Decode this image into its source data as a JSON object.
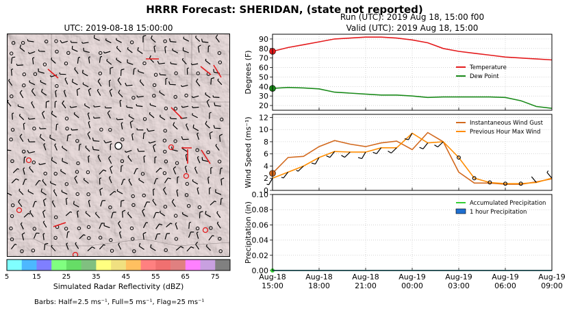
{
  "figure": {
    "title": "HRRR Forecast: SHERIDAN, (state not reported)",
    "map_title": "UTC: 2019-08-18 15:00:00",
    "run_line": "Run (UTC): 2019 Aug 18, 15:00 f00",
    "valid_line": "Valid (UTC): 2019 Aug 18, 15:00",
    "colorbar_label": "Simulated Radar Reflectivity (dBZ)",
    "barb_note": "Barbs: Half=2.5 ms⁻¹, Full=5 ms⁻¹, Flag=25 ms⁻¹"
  },
  "colors": {
    "temperature": "#e41a1c",
    "dew_point": "#1a8a1a",
    "gust": "#d2691e",
    "max_wind": "#ff8c00",
    "accum_precip": "#32cd32",
    "hourly_precip": "#1f6fd0"
  },
  "chart_data": [
    {
      "type": "colorbar",
      "title": "",
      "label": "Simulated Radar Reflectivity (dBZ)",
      "range": [
        5,
        80
      ],
      "bins": [
        5,
        10,
        15,
        20,
        25,
        30,
        35,
        40,
        45,
        50,
        55,
        60,
        65,
        70,
        75,
        80
      ],
      "tick_labels": [
        "5",
        "15",
        "25",
        "35",
        "45",
        "55",
        "65",
        "75"
      ],
      "colors": [
        "#80ffff",
        "#4db8ff",
        "#7f7fff",
        "#80ff80",
        "#66dd66",
        "#80c080",
        "#ffff80",
        "#f0e080",
        "#ffc060",
        "#ff8080",
        "#f07070",
        "#e08080",
        "#ff80ff",
        "#c8a0e0",
        "#808080"
      ]
    },
    {
      "type": "line",
      "panel": "temperature",
      "ylabel": "Degrees (F)",
      "ylim": [
        15,
        95
      ],
      "yticks": [
        20,
        30,
        40,
        50,
        60,
        70,
        80,
        90
      ],
      "grid": true,
      "legend_position": "right",
      "x_hours": [
        0,
        1,
        2,
        3,
        4,
        5,
        6,
        7,
        8,
        9,
        10,
        11,
        12,
        13,
        14,
        15,
        16,
        17,
        18
      ],
      "series": [
        {
          "name": "Temperature",
          "values": [
            77,
            81,
            84,
            87,
            90,
            91,
            92,
            92,
            91,
            89,
            86,
            80,
            77,
            75,
            73,
            71,
            70,
            69,
            68
          ]
        },
        {
          "name": "Dew Point",
          "values": [
            38,
            39,
            38.5,
            37.5,
            34,
            33,
            32,
            31,
            31,
            30,
            28.5,
            29,
            29,
            29,
            29,
            28.5,
            25,
            19,
            17
          ]
        }
      ]
    },
    {
      "type": "line",
      "panel": "wind",
      "ylabel": "Wind Speed (ms⁻¹)",
      "ylim": [
        0,
        12.5
      ],
      "yticks": [
        0,
        2,
        4,
        6,
        8,
        10,
        12
      ],
      "grid": true,
      "legend_position": "top-right",
      "x_hours": [
        0,
        1,
        2,
        3,
        4,
        5,
        6,
        7,
        8,
        9,
        10,
        11,
        12,
        13,
        14,
        15,
        16,
        17,
        18
      ],
      "series": [
        {
          "name": "Instantaneous Wind Gust",
          "values": [
            2.8,
            5.4,
            5.6,
            7.2,
            8.2,
            7.6,
            7.2,
            7.8,
            8.1,
            6.7,
            9.5,
            8.0,
            3.0,
            1.2,
            1.2,
            1.0,
            1.0,
            1.4,
            1.9
          ]
        },
        {
          "name": "Previous Hour Max Wind",
          "values": [
            2.0,
            3.0,
            4.0,
            5.4,
            6.4,
            6.3,
            6.3,
            7.0,
            7.0,
            9.4,
            7.8,
            8.0,
            5.4,
            2.0,
            1.3,
            1.1,
            1.1,
            1.3,
            2.0
          ]
        }
      ],
      "barb_speeds": [
        2,
        2.5,
        3,
        4.8,
        5.3,
        5.5,
        5.8,
        6.2,
        6.5,
        6.6,
        6.5,
        6.8,
        1.2,
        1.0,
        1.2,
        1.0,
        1.2,
        1.5,
        2.0
      ]
    },
    {
      "type": "area",
      "panel": "precipitation",
      "ylabel": "Precipitation (in)",
      "ylim": [
        0,
        0.1
      ],
      "yticks": [
        0.0,
        0.02,
        0.04,
        0.06,
        0.08,
        0.1
      ],
      "ytick_labels": [
        "0.00",
        "0.02",
        "0.04",
        "0.06",
        "0.08",
        "0.10"
      ],
      "grid": true,
      "legend_position": "top-right",
      "x_hours": [
        0,
        1,
        2,
        3,
        4,
        5,
        6,
        7,
        8,
        9,
        10,
        11,
        12,
        13,
        14,
        15,
        16,
        17,
        18
      ],
      "series": [
        {
          "name": "Accumulated Precipitation",
          "values": [
            0,
            0,
            0,
            0,
            0,
            0,
            0,
            0,
            0,
            0,
            0,
            0,
            0,
            0,
            0,
            0,
            0,
            0,
            0
          ]
        },
        {
          "name": "1 hour Precipitation",
          "values": [
            0,
            0,
            0,
            0,
            0,
            0,
            0,
            0,
            0,
            0,
            0,
            0,
            0,
            0,
            0,
            0,
            0,
            0,
            0
          ]
        }
      ],
      "xticks": [
        "Aug-18\n15:00",
        "Aug-18\n18:00",
        "Aug-18\n21:00",
        "Aug-19\n00:00",
        "Aug-19\n03:00",
        "Aug-19\n06:00",
        "Aug-19\n09:00"
      ],
      "xtick_hours": [
        0,
        3,
        6,
        9,
        12,
        15,
        18
      ]
    }
  ]
}
